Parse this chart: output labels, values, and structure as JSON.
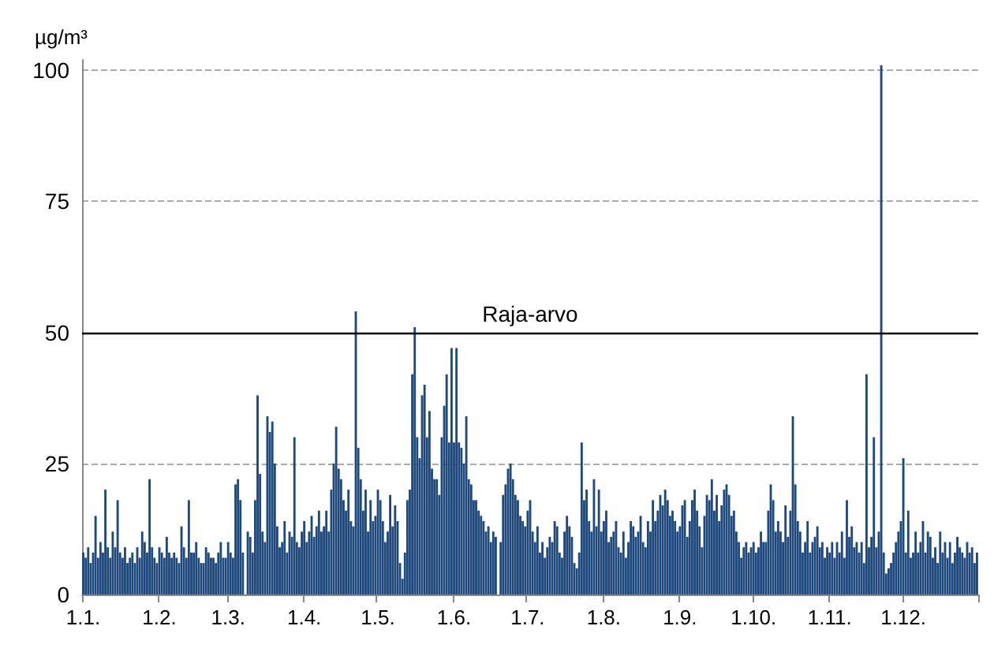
{
  "chart_data": {
    "type": "bar",
    "ylabel": "µg/m³",
    "categories": [
      "1.1.",
      null,
      null,
      null,
      null,
      null,
      null,
      null,
      null,
      null,
      null,
      null,
      null,
      null,
      null,
      null,
      null,
      null,
      null,
      null,
      null,
      null,
      null,
      null,
      null,
      null,
      null,
      null,
      null,
      null,
      null,
      "1.2.",
      null,
      null,
      null,
      null,
      null,
      null,
      null,
      null,
      null,
      null,
      null,
      null,
      null,
      null,
      null,
      null,
      null,
      null,
      null,
      null,
      null,
      null,
      null,
      null,
      null,
      null,
      null,
      "1.3.",
      null,
      null,
      null,
      null,
      null,
      null,
      null,
      null,
      null,
      null,
      null,
      null,
      null,
      null,
      null,
      null,
      null,
      null,
      null,
      null,
      null,
      null,
      null,
      null,
      null,
      null,
      null,
      null,
      null,
      null,
      "1.4.",
      null,
      null,
      null,
      null,
      null,
      null,
      null,
      null,
      null,
      null,
      null,
      null,
      null,
      null,
      null,
      null,
      null,
      null,
      null,
      null,
      null,
      null,
      null,
      null,
      null,
      null,
      null,
      null,
      null,
      "1.5.",
      null,
      null,
      null,
      null,
      null,
      null,
      null,
      null,
      null,
      null,
      null,
      null,
      null,
      null,
      null,
      null,
      null,
      null,
      null,
      null,
      null,
      null,
      null,
      null,
      null,
      null,
      null,
      null,
      null,
      null,
      "1.6.",
      null,
      null,
      null,
      null,
      null,
      null,
      null,
      null,
      null,
      null,
      null,
      null,
      null,
      null,
      null,
      null,
      null,
      null,
      null,
      null,
      null,
      null,
      null,
      null,
      null,
      null,
      null,
      null,
      null,
      "1.7.",
      null,
      null,
      null,
      null,
      null,
      null,
      null,
      null,
      null,
      null,
      null,
      null,
      null,
      null,
      null,
      null,
      null,
      null,
      null,
      null,
      null,
      null,
      null,
      null,
      null,
      null,
      null,
      null,
      null,
      null,
      "1.8.",
      null,
      null,
      null,
      null,
      null,
      null,
      null,
      null,
      null,
      null,
      null,
      null,
      null,
      null,
      null,
      null,
      null,
      null,
      null,
      null,
      null,
      null,
      null,
      null,
      null,
      null,
      null,
      null,
      null,
      null,
      "1.9.",
      null,
      null,
      null,
      null,
      null,
      null,
      null,
      null,
      null,
      null,
      null,
      null,
      null,
      null,
      null,
      null,
      null,
      null,
      null,
      null,
      null,
      null,
      null,
      null,
      null,
      null,
      null,
      null,
      null,
      "1.10.",
      null,
      null,
      null,
      null,
      null,
      null,
      null,
      null,
      null,
      null,
      null,
      null,
      null,
      null,
      null,
      null,
      null,
      null,
      null,
      null,
      null,
      null,
      null,
      null,
      null,
      null,
      null,
      null,
      null,
      null,
      "1.11.",
      null,
      null,
      null,
      null,
      null,
      null,
      null,
      null,
      null,
      null,
      null,
      null,
      null,
      null,
      null,
      null,
      null,
      null,
      null,
      null,
      null,
      null,
      null,
      null,
      null,
      null,
      null,
      null,
      null,
      "1.12.",
      null,
      null,
      null,
      null,
      null,
      null,
      null,
      null,
      null,
      null,
      null,
      null,
      null,
      null,
      null,
      null,
      null,
      null,
      null,
      null,
      null,
      null,
      null,
      null,
      null,
      null,
      null,
      null,
      null,
      null
    ],
    "values": [
      8,
      7,
      9,
      6,
      8,
      15,
      7,
      10,
      8,
      20,
      9,
      7,
      12,
      9,
      18,
      8,
      7,
      9,
      6,
      7,
      8,
      6,
      9,
      7,
      12,
      10,
      8,
      22,
      9,
      7,
      6,
      9,
      8,
      7,
      11,
      8,
      7,
      8,
      7,
      6,
      13,
      9,
      7,
      18,
      8,
      8,
      10,
      7,
      6,
      6,
      9,
      8,
      7,
      7,
      6,
      8,
      10,
      7,
      7,
      10,
      8,
      7,
      21,
      22,
      18,
      8,
      0,
      12,
      11,
      8,
      18,
      38,
      23,
      12,
      10,
      34,
      31,
      33,
      25,
      13,
      9,
      10,
      14,
      8,
      12,
      11,
      30,
      10,
      9,
      12,
      14,
      10,
      12,
      15,
      11,
      13,
      16,
      12,
      13,
      16,
      12,
      20,
      25,
      32,
      24,
      22,
      18,
      16,
      20,
      14,
      13,
      54,
      28,
      22,
      16,
      20,
      12,
      18,
      14,
      15,
      20,
      18,
      14,
      10,
      12,
      19,
      13,
      17,
      14,
      6,
      3,
      8,
      18,
      20,
      42,
      51,
      30,
      26,
      38,
      40,
      30,
      35,
      24,
      22,
      22,
      19,
      30,
      36,
      42,
      29,
      47,
      29,
      47,
      29,
      28,
      25,
      34,
      22,
      21,
      18,
      18,
      16,
      15,
      14,
      12,
      13,
      10,
      12,
      11,
      0,
      10,
      19,
      21,
      24,
      25,
      22,
      19,
      18,
      15,
      14,
      13,
      16,
      18,
      12,
      10,
      13,
      8,
      10,
      7,
      9,
      11,
      10,
      14,
      13,
      8,
      7,
      12,
      15,
      13,
      11,
      6,
      5,
      8,
      29,
      18,
      20,
      14,
      12,
      22,
      13,
      20,
      12,
      14,
      16,
      10,
      11,
      12,
      14,
      9,
      8,
      12,
      7,
      10,
      14,
      13,
      11,
      12,
      15,
      10,
      9,
      14,
      12,
      18,
      14,
      16,
      19,
      17,
      20,
      18,
      15,
      16,
      14,
      12,
      13,
      17,
      18,
      11,
      14,
      18,
      20,
      16,
      13,
      9,
      15,
      19,
      18,
      22,
      16,
      19,
      14,
      17,
      20,
      21,
      19,
      15,
      16,
      12,
      10,
      7,
      9,
      10,
      8,
      9,
      10,
      8,
      9,
      12,
      10,
      10,
      16,
      21,
      18,
      12,
      14,
      12,
      10,
      17,
      11,
      16,
      34,
      21,
      14,
      12,
      8,
      10,
      14,
      8,
      10,
      11,
      13,
      9,
      10,
      7,
      9,
      8,
      10,
      7,
      10,
      8,
      12,
      7,
      18,
      11,
      13,
      9,
      10,
      8,
      10,
      6,
      42,
      9,
      11,
      30,
      9,
      12,
      101,
      8,
      4,
      5,
      6,
      8,
      10,
      12,
      14,
      26,
      8,
      16,
      7,
      8,
      12,
      8,
      10,
      14,
      8,
      12,
      11,
      7,
      9,
      6,
      12,
      8,
      10,
      7,
      10,
      6,
      8,
      11,
      9,
      8,
      7,
      10,
      8,
      9,
      6,
      8
    ],
    "color": "#1f497d",
    "ylim": [
      0,
      102
    ],
    "yticks": [
      0,
      25,
      50,
      75,
      100
    ],
    "grid": "y",
    "ref_lines": [
      {
        "axis": "y",
        "value": 50,
        "label": "Raja-arvo",
        "color": "#000000"
      }
    ]
  }
}
